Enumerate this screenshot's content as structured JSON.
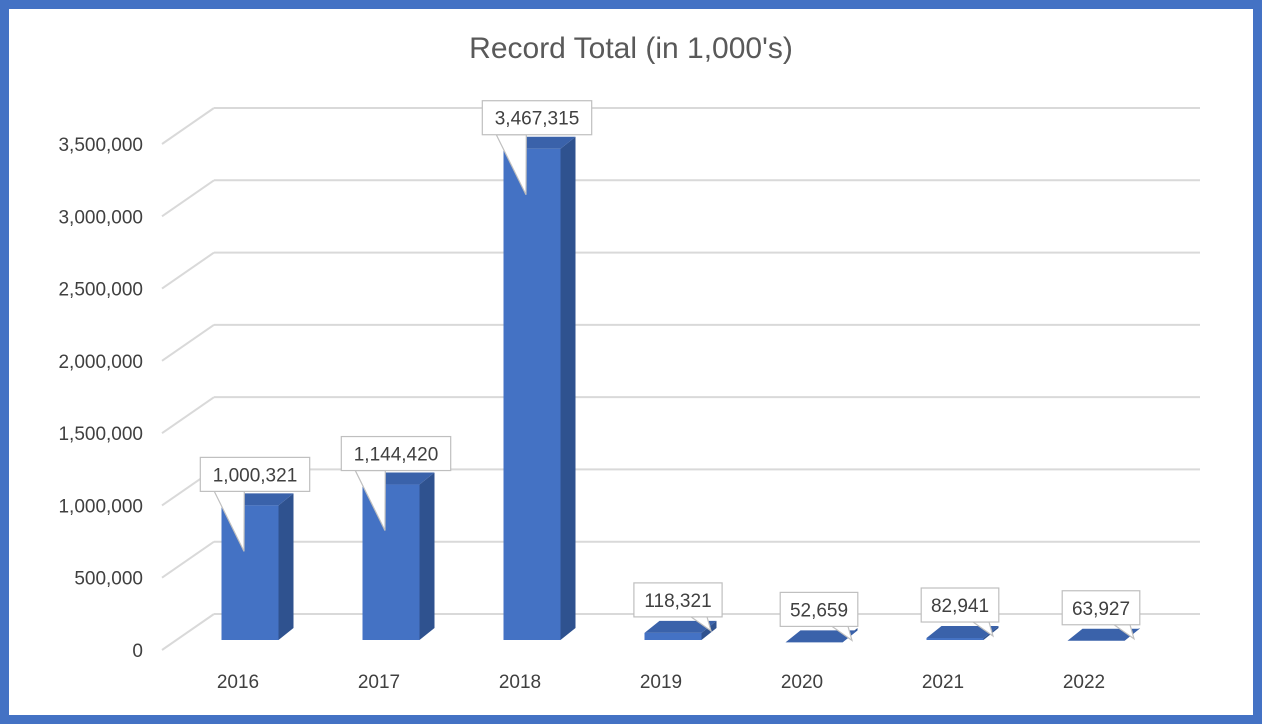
{
  "chart_data": {
    "type": "bar",
    "title": "Record Total (in 1,000's)",
    "xlabel": "",
    "ylabel": "",
    "categories": [
      "2016",
      "2017",
      "2018",
      "2019",
      "2020",
      "2021",
      "2022"
    ],
    "values": [
      1000321,
      1144420,
      3467315,
      118321,
      52659,
      82941,
      63927
    ],
    "value_labels": [
      "1,000,321",
      "1,144,420",
      "3,467,315",
      "118,321",
      "52,659",
      "82,941",
      "63,927"
    ],
    "ylim": [
      0,
      3500000
    ],
    "yticks": [
      0,
      500000,
      1000000,
      1500000,
      2000000,
      2500000,
      3000000,
      3500000
    ],
    "ytick_labels": [
      "0",
      "500,000",
      "1,000,000",
      "1,500,000",
      "2,000,000",
      "2,500,000",
      "3,000,000",
      "3,500,000"
    ],
    "grid": true,
    "legend": "none",
    "style": "3d-clustered-column",
    "colors": {
      "bar_front": "#4472c4",
      "bar_side": "#2f528f",
      "bar_top": "#3a62aa",
      "grid": "#d9d9d9",
      "frame": "#4472c4"
    }
  }
}
